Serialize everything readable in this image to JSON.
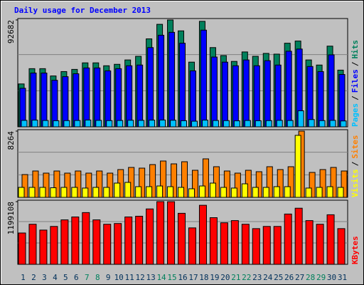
{
  "title": "Daily usage for December 2013",
  "categories": [
    "1",
    "2",
    "3",
    "4",
    "5",
    "6",
    "7",
    "8",
    "9",
    "10",
    "11",
    "12",
    "13",
    "14",
    "15",
    "16",
    "17",
    "18",
    "19",
    "20",
    "21",
    "22",
    "23",
    "24",
    "25",
    "26",
    "27",
    "28",
    "29",
    "30",
    "31"
  ],
  "weekend_indices": [
    6,
    7,
    13,
    14,
    20,
    21,
    27,
    28
  ],
  "weekday_color": "#00305a",
  "weekend_color": "#00805c",
  "chart_data": [
    {
      "type": "bar",
      "ylim": [
        0,
        92682
      ],
      "yticks": [
        92682
      ],
      "legend_separator": "/",
      "series": [
        {
          "name": "Hits",
          "color": "#00805c",
          "values": [
            37200,
            50440,
            50440,
            44130,
            47920,
            49810,
            55480,
            55480,
            52960,
            54220,
            58000,
            61160,
            76290,
            88900,
            92682,
            83220,
            56110,
            91500,
            68720,
            61790,
            56740,
            64940,
            61160,
            63680,
            63050,
            72510,
            74400,
            58000,
            53590,
            69980,
            49180
          ]
        },
        {
          "name": "Files",
          "color": "#0000ff",
          "values": [
            33420,
            46660,
            46660,
            40350,
            43500,
            46030,
            51070,
            51070,
            48550,
            50440,
            52960,
            53590,
            68720,
            79440,
            81960,
            72510,
            48550,
            83860,
            60530,
            56110,
            52960,
            58000,
            52960,
            57370,
            53590,
            65570,
            67460,
            52330,
            47920,
            62420,
            45400
          ]
        },
        {
          "name": "Pages",
          "color": "#00c0ff",
          "values": [
            5600,
            5800,
            5500,
            5300,
            5400,
            5500,
            5900,
            5600,
            5400,
            5500,
            5700,
            5600,
            5800,
            5900,
            5700,
            5300,
            4900,
            5800,
            5500,
            5400,
            5200,
            5500,
            5300,
            5400,
            5600,
            5500,
            13900,
            6300,
            5400,
            5600,
            5100
          ]
        }
      ]
    },
    {
      "type": "bar",
      "ylim": [
        0,
        8264
      ],
      "yticks": [
        8264
      ],
      "legend_separator": "/",
      "series": [
        {
          "name": "Sites",
          "color": "#ff8000",
          "values": [
            2845,
            3289,
            3023,
            3289,
            3023,
            3289,
            3023,
            3289,
            3023,
            3467,
            3734,
            3645,
            4089,
            4534,
            4178,
            4445,
            3378,
            4801,
            3823,
            3289,
            3023,
            3378,
            3200,
            3823,
            3467,
            3823,
            8264,
            3112,
            3467,
            3734,
            3289
          ]
        },
        {
          "name": "Visits",
          "color": "#ffff00",
          "values": [
            1245,
            1245,
            1245,
            1200,
            1245,
            1245,
            1160,
            1245,
            1245,
            1778,
            1867,
            1334,
            1334,
            1420,
            1334,
            1245,
            1070,
            1420,
            1778,
            1245,
            1160,
            1689,
            1245,
            1245,
            1334,
            1334,
            7734,
            1160,
            1245,
            1334,
            1245
          ]
        }
      ]
    },
    {
      "type": "bar",
      "ylim": [
        0,
        1199108
      ],
      "yticks": [
        1199108
      ],
      "legend_separator": "/",
      "series": [
        {
          "name": "KBytes",
          "color": "#ff0000",
          "values": [
            599549,
            766865,
            655321,
            725036,
            850523,
            906295,
            989953,
            850523,
            766865,
            780808,
            906295,
            920238,
            1059668,
            1199108,
            1198000,
            976010,
            697150,
            1129383,
            892352,
            794751,
            836580,
            766865,
            683207,
            725036,
            725036,
            962067,
            1073611,
            836580,
            766865,
            948124,
            683207
          ]
        }
      ]
    }
  ]
}
